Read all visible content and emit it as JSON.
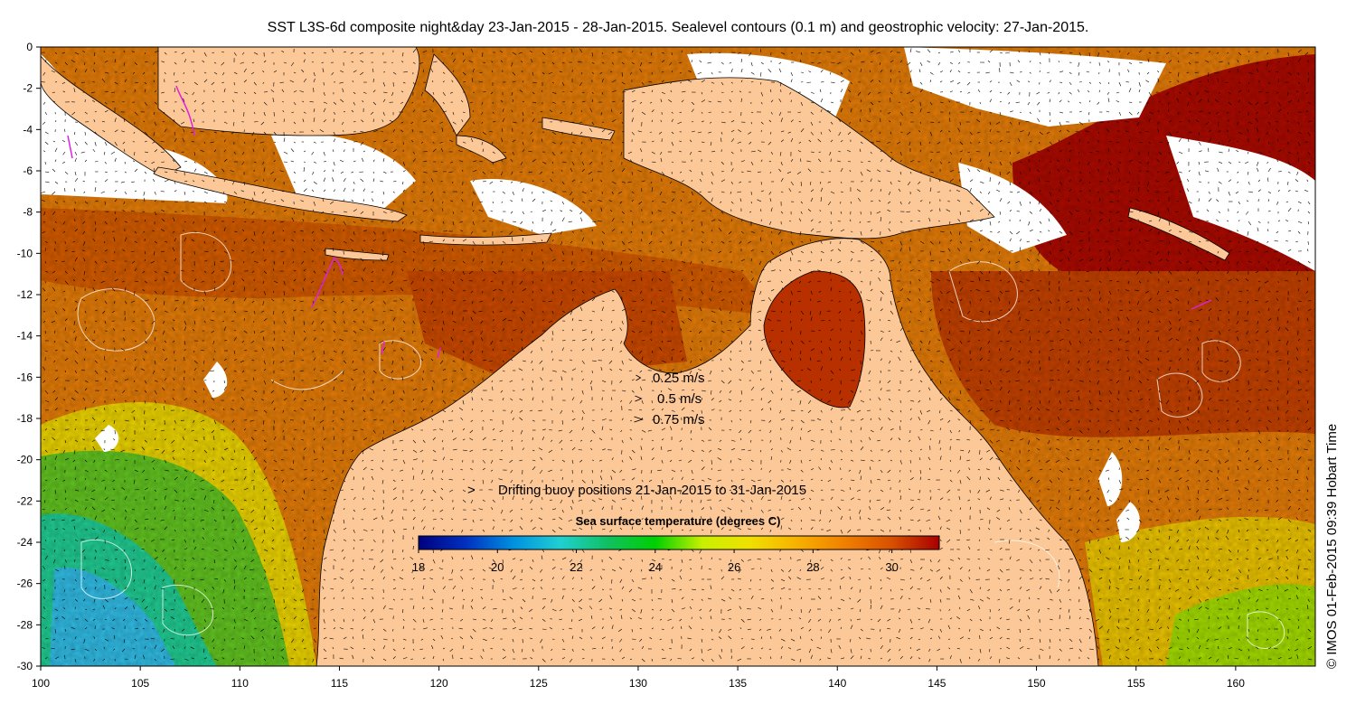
{
  "title": "SST L3S-6d composite night&day 23-Jan-2015 - 28-Jan-2015. Sealevel contours (0.1 m) and geostrophic velocity: 27-Jan-2015.",
  "credit": "© IMOS 01-Feb-2015 09:39 Hobart Time",
  "axes": {
    "lon_range": [
      100,
      164
    ],
    "lat_range": [
      -30,
      0
    ],
    "x_ticks": [
      "100",
      "105",
      "110",
      "115",
      "120",
      "125",
      "130",
      "135",
      "140",
      "145",
      "150",
      "155",
      "160"
    ],
    "y_ticks": [
      "0",
      "-2",
      "-4",
      "-6",
      "-8",
      "-10",
      "-12",
      "-14",
      "-16",
      "-18",
      "-20",
      "-22",
      "-24",
      "-26",
      "-28",
      "-30"
    ]
  },
  "velocity_legend": [
    {
      "label": "0.25 m/s",
      "speed": 0.25
    },
    {
      "label": "0.5 m/s",
      "speed": 0.5
    },
    {
      "label": "0.75 m/s",
      "speed": 0.75
    }
  ],
  "buoy_legend": {
    "symbol": ">",
    "label": "Drifting buoy positions 21-Jan-2015 to 31-Jan-2015"
  },
  "colorbar": {
    "title": "Sea surface temperature (degrees C)",
    "range": [
      18,
      31.2
    ],
    "ticks": [
      "18",
      "20",
      "22",
      "24",
      "26",
      "28",
      "30"
    ],
    "colors": [
      "#00007f",
      "#0030c0",
      "#0090e0",
      "#20d0d0",
      "#10c060",
      "#00d000",
      "#c8f000",
      "#f0e000",
      "#f8b000",
      "#f08000",
      "#d85000",
      "#a80000"
    ]
  },
  "colors": {
    "land": "#fcc898",
    "no_data": "#ffffff",
    "buoy": "#e020e0",
    "coast": "#000000"
  }
}
